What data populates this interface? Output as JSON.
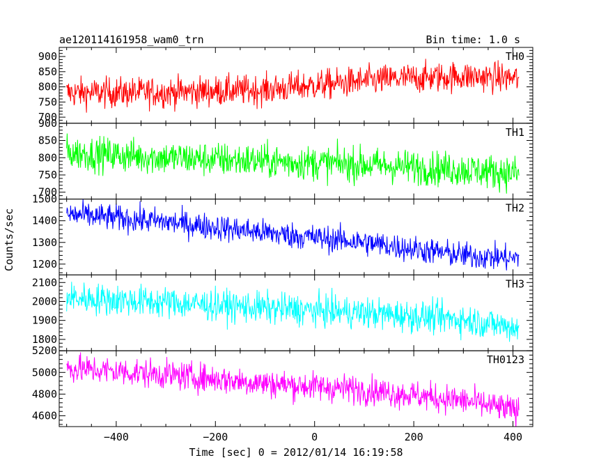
{
  "chart_data": {
    "type": "line",
    "title": "ae120114161958_wam0_trn",
    "subtitle": "Bin time: 1.0 s",
    "xlabel": "Time [sec] 0 = 2012/01/14 16:19:58",
    "ylabel": "Counts/sec",
    "xlim": [
      -515,
      440
    ],
    "xticks": [
      -400,
      -200,
      0,
      200,
      400
    ],
    "x_start": -500,
    "x_end": 412,
    "grid": false,
    "series": [
      {
        "name": "TH0",
        "color": "#ff0000",
        "ylim": [
          680,
          930
        ],
        "yticks": [
          700,
          750,
          800,
          850,
          900
        ],
        "trend": [
          [
            -500,
            780
          ],
          [
            -300,
            782
          ],
          [
            -100,
            790
          ],
          [
            0,
            805
          ],
          [
            150,
            825
          ],
          [
            300,
            835
          ],
          [
            412,
            828
          ]
        ],
        "noise_amplitude": 45
      },
      {
        "name": "TH1",
        "color": "#00ff00",
        "ylim": [
          680,
          900
        ],
        "yticks": [
          700,
          750,
          800,
          850,
          900
        ],
        "trend": [
          [
            -500,
            815
          ],
          [
            -300,
            800
          ],
          [
            -100,
            790
          ],
          [
            100,
            780
          ],
          [
            300,
            765
          ],
          [
            412,
            755
          ]
        ],
        "noise_amplitude": 45
      },
      {
        "name": "TH2",
        "color": "#0000ff",
        "ylim": [
          1150,
          1500
        ],
        "yticks": [
          1200,
          1300,
          1400,
          1500
        ],
        "trend": [
          [
            -500,
            1430
          ],
          [
            -300,
            1395
          ],
          [
            -100,
            1345
          ],
          [
            100,
            1300
          ],
          [
            300,
            1240
          ],
          [
            412,
            1225
          ]
        ],
        "noise_amplitude": 55
      },
      {
        "name": "TH3",
        "color": "#00ffff",
        "ylim": [
          1740,
          2140
        ],
        "yticks": [
          1800,
          1900,
          2000,
          2100
        ],
        "trend": [
          [
            -500,
            2020
          ],
          [
            -300,
            1995
          ],
          [
            -100,
            1965
          ],
          [
            100,
            1940
          ],
          [
            300,
            1905
          ],
          [
            412,
            1860
          ]
        ],
        "noise_amplitude": 75
      },
      {
        "name": "TH0123",
        "color": "#ff00ff",
        "ylim": [
          4500,
          5200
        ],
        "yticks": [
          4600,
          4800,
          5000,
          5200
        ],
        "trend": [
          [
            -500,
            5040
          ],
          [
            -300,
            4980
          ],
          [
            -100,
            4900
          ],
          [
            100,
            4840
          ],
          [
            300,
            4740
          ],
          [
            412,
            4640
          ]
        ],
        "noise_amplitude": 120
      }
    ]
  }
}
